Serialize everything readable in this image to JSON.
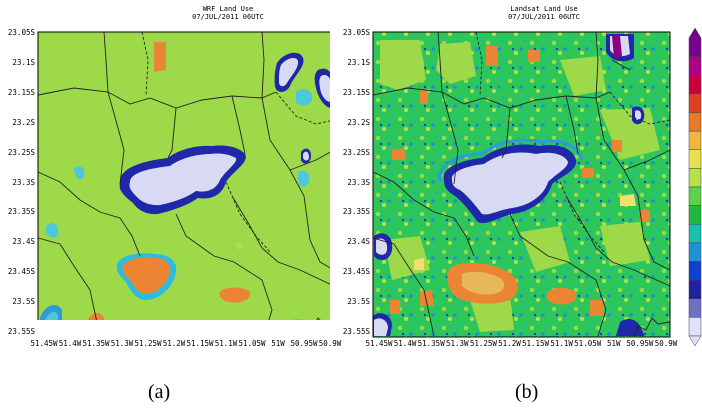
{
  "panels": [
    {
      "title": "WRF Land Use",
      "time": "07/JUL/2011 06UTC",
      "caption": "(a)",
      "lat_labels": [
        "23.05S",
        "23.1S",
        "23.15S",
        "23.2S",
        "23.25S",
        "23.3S",
        "23.35S",
        "23.4S",
        "23.45S",
        "23.5S",
        "23.55S"
      ],
      "lon_labels": [
        "51.45W",
        "51.4W",
        "51.35W",
        "51.3W",
        "51.25W",
        "51.2W",
        "51.15W",
        "51.1W",
        "51.05W",
        "51W",
        "50.95W",
        "50.9W"
      ],
      "background_color": "#9ed94a"
    },
    {
      "title": "Landsat Land Use",
      "time": "07/JUL/2011 06UTC",
      "caption": "(b)",
      "lat_labels": [
        "23.05S",
        "23.1S",
        "23.15S",
        "23.2S",
        "23.25S",
        "23.3S",
        "23.35S",
        "23.4S",
        "23.45S",
        "23.5S",
        "23.55S"
      ],
      "lon_labels": [
        "51.45W",
        "51.4W",
        "51.35W",
        "51.3W",
        "51.25W",
        "51.2W",
        "51.15W",
        "51.1W",
        "51.05W",
        "51W",
        "50.95W",
        "50.9W"
      ],
      "background_color": "#2cc65a"
    }
  ],
  "colorbar": {
    "colors": [
      "#7a0090",
      "#b0008a",
      "#c8003c",
      "#e04020",
      "#ea7a2a",
      "#eeb840",
      "#e8e050",
      "#b8e048",
      "#5ad24a",
      "#20b840",
      "#18c0b0",
      "#2090d8",
      "#1040d0",
      "#2020a0",
      "#7070c0",
      "#e0e0f8"
    ]
  }
}
